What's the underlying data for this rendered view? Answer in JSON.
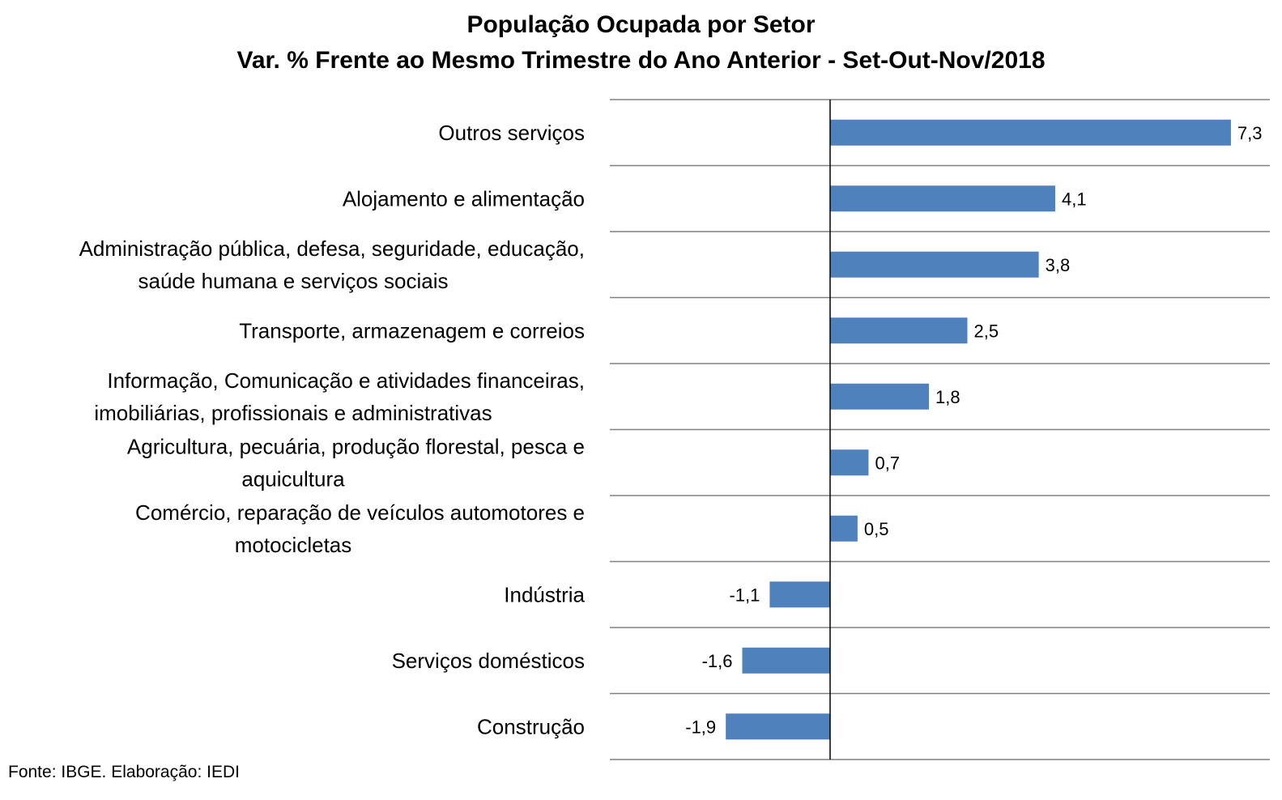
{
  "chart_data": {
    "type": "bar",
    "orientation": "horizontal",
    "title": "População Ocupada por Setor",
    "subtitle": "Var. % Frente ao Mesmo Trimestre do Ano Anterior - Set-Out-Nov/2018",
    "categories": [
      [
        "Outros serviços"
      ],
      [
        "Alojamento e alimentação"
      ],
      [
        "Administração pública, defesa, seguridade, educação,",
        "saúde humana e serviços sociais"
      ],
      [
        "Transporte, armazenagem e correios"
      ],
      [
        "Informação, Comunicação e atividades financeiras,",
        "imobiliárias, profissionais e administrativas"
      ],
      [
        "Agricultura, pecuária, produção florestal, pesca e",
        "aquicultura"
      ],
      [
        "Comércio, reparação de veículos automotores e",
        "motocicletas"
      ],
      [
        "Indústria"
      ],
      [
        "Serviços domésticos"
      ],
      [
        "Construção"
      ]
    ],
    "values": [
      7.3,
      4.1,
      3.8,
      2.5,
      1.8,
      0.7,
      0.5,
      -1.1,
      -1.6,
      -1.9
    ],
    "value_labels": [
      "7,3",
      "4,1",
      "3,8",
      "2,5",
      "1,8",
      "0,7",
      "0,5",
      "-1,1",
      "-1,6",
      "-1,9"
    ],
    "xlim": [
      -4,
      8
    ],
    "grid": "horizontal category separators",
    "bar_color": "#4F81BD"
  },
  "source": "Fonte: IBGE. Elaboração: IEDI"
}
